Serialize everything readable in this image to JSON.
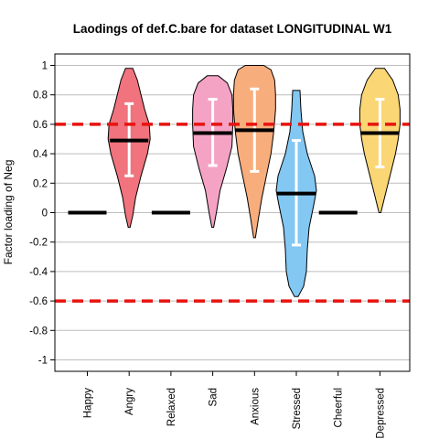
{
  "chart_data": {
    "type": "violin",
    "title": "Laodings of def.C.bare for dataset LONGITUDINAL W1",
    "xlabel": "",
    "ylabel": "Factor loading of Neg",
    "ylim": [
      -1.05,
      1.05
    ],
    "yticks": [
      1,
      0.8,
      0.6,
      0.4,
      0.2,
      0,
      -0.2,
      -0.4,
      -0.6,
      -0.8,
      -1
    ],
    "ytick_labels": [
      "1",
      "0.8",
      "0.6",
      "0.4",
      "0.2",
      "0",
      "-0.2",
      "-0.4",
      "-0.6",
      "-0.8",
      "-1"
    ],
    "grid": "horizontal",
    "reference_lines": [
      0.6,
      -0.6
    ],
    "reference_line_color": "#e8130f",
    "categories": [
      "Happy",
      "Angry",
      "Relaxed",
      "Sad",
      "Anxious",
      "Stressed",
      "Cheerful",
      "Depressed"
    ],
    "series": [
      {
        "label": "Happy",
        "mean": 0.0,
        "violin": null,
        "color": null
      },
      {
        "label": "Angry",
        "mean": 0.49,
        "sd_low": 0.25,
        "sd_high": 0.74,
        "color": "#f0737d",
        "violin": [
          [
            -0.1,
            0.01
          ],
          [
            -0.02,
            0.04
          ],
          [
            0.1,
            0.07
          ],
          [
            0.25,
            0.13
          ],
          [
            0.4,
            0.2
          ],
          [
            0.5,
            0.23
          ],
          [
            0.6,
            0.22
          ],
          [
            0.7,
            0.17
          ],
          [
            0.8,
            0.13
          ],
          [
            0.9,
            0.09
          ],
          [
            0.98,
            0.04
          ]
        ]
      },
      {
        "label": "Relaxed",
        "mean": 0.0,
        "violin": null,
        "color": null
      },
      {
        "label": "Sad",
        "mean": 0.54,
        "sd_low": 0.32,
        "sd_high": 0.77,
        "color": "#f5a3c5",
        "violin": [
          [
            -0.1,
            0.01
          ],
          [
            0.0,
            0.04
          ],
          [
            0.15,
            0.08
          ],
          [
            0.3,
            0.15
          ],
          [
            0.45,
            0.21
          ],
          [
            0.6,
            0.22
          ],
          [
            0.7,
            0.22
          ],
          [
            0.8,
            0.21
          ],
          [
            0.88,
            0.16
          ],
          [
            0.93,
            0.06
          ]
        ]
      },
      {
        "label": "Anxious",
        "mean": 0.56,
        "sd_low": 0.28,
        "sd_high": 0.84,
        "color": "#f8ad7c",
        "violin": [
          [
            -0.17,
            0.01
          ],
          [
            -0.05,
            0.04
          ],
          [
            0.1,
            0.08
          ],
          [
            0.25,
            0.13
          ],
          [
            0.4,
            0.18
          ],
          [
            0.55,
            0.21
          ],
          [
            0.7,
            0.23
          ],
          [
            0.8,
            0.23
          ],
          [
            0.9,
            0.22
          ],
          [
            0.97,
            0.18
          ],
          [
            1.0,
            0.1
          ]
        ]
      },
      {
        "label": "Stressed",
        "mean": 0.13,
        "sd_low": -0.22,
        "sd_high": 0.49,
        "color": "#83c7f3",
        "violin": [
          [
            -0.57,
            0.02
          ],
          [
            -0.5,
            0.08
          ],
          [
            -0.4,
            0.11
          ],
          [
            -0.25,
            0.12
          ],
          [
            -0.1,
            0.14
          ],
          [
            0.05,
            0.19
          ],
          [
            0.15,
            0.22
          ],
          [
            0.25,
            0.2
          ],
          [
            0.4,
            0.12
          ],
          [
            0.55,
            0.07
          ],
          [
            0.7,
            0.05
          ],
          [
            0.83,
            0.04
          ]
        ]
      },
      {
        "label": "Cheerful",
        "mean": 0.0,
        "violin": null,
        "color": null
      },
      {
        "label": "Depressed",
        "mean": 0.54,
        "sd_low": 0.31,
        "sd_high": 0.77,
        "color": "#fbd674",
        "violin": [
          [
            0.0,
            0.01
          ],
          [
            0.1,
            0.05
          ],
          [
            0.25,
            0.11
          ],
          [
            0.4,
            0.17
          ],
          [
            0.5,
            0.2
          ],
          [
            0.6,
            0.22
          ],
          [
            0.7,
            0.22
          ],
          [
            0.8,
            0.2
          ],
          [
            0.9,
            0.14
          ],
          [
            0.98,
            0.05
          ]
        ]
      }
    ]
  }
}
